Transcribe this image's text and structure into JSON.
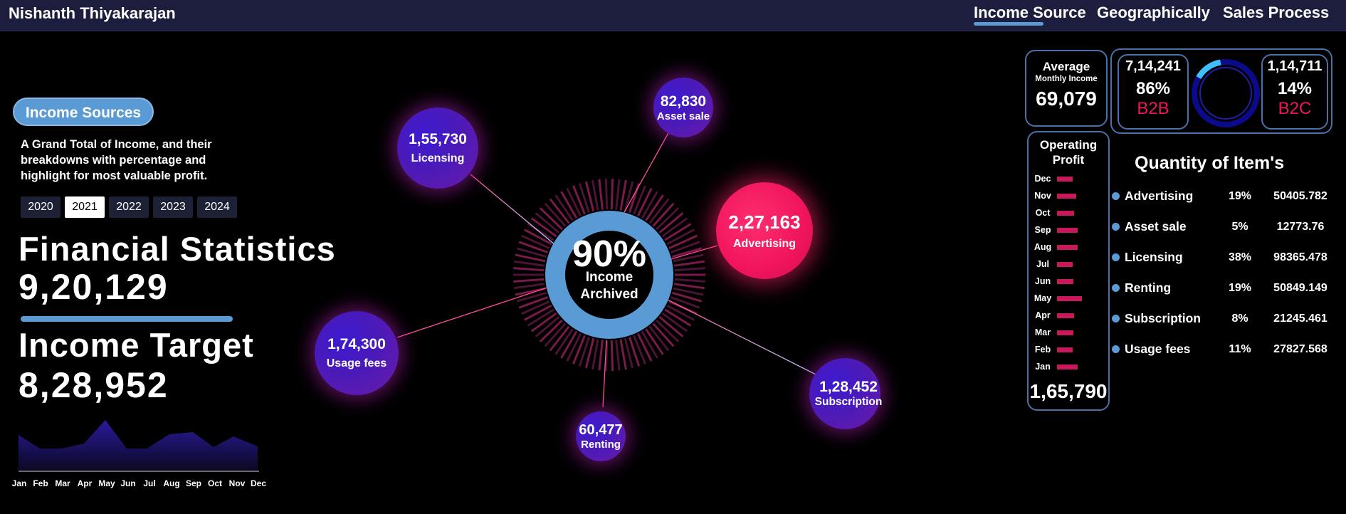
{
  "header": {
    "user_name": "Nishanth Thiyakarajan",
    "nav": [
      "Income Source",
      "Geographically",
      "Sales Process"
    ],
    "active_nav": "Income Source"
  },
  "left": {
    "badge": "Income Sources",
    "description": "A Grand Total of Income, and their breakdowns with percentage and highlight for most valuable profit.",
    "years": [
      "2020",
      "2021",
      "2022",
      "2023",
      "2024"
    ],
    "selected_year": "2021",
    "financial_title": "Financial Statistics",
    "financial_value": "9,20,129",
    "target_title": "Income Target",
    "target_value": "8,28,952",
    "months": [
      "Jan",
      "Feb",
      "Mar",
      "Apr",
      "May",
      "Jun",
      "Jul",
      "Aug",
      "Sep",
      "Oct",
      "Nov",
      "Dec"
    ]
  },
  "center": {
    "percent": "90%",
    "label_line1": "Income",
    "label_line2": "Archived",
    "bubbles": [
      {
        "value": "1,55,730",
        "label": "Licensing"
      },
      {
        "value": "82,830",
        "label": "Asset sale"
      },
      {
        "value": "2,27,163",
        "label": "Advertising"
      },
      {
        "value": "1,74,300",
        "label": "Usage fees"
      },
      {
        "value": "1,28,452",
        "label": "Subscription"
      },
      {
        "value": "60,477",
        "label": "Renting"
      }
    ]
  },
  "right": {
    "avg_title": "Average",
    "avg_sub": "Monthly Income",
    "avg_value": "69,079",
    "b2b": {
      "value": "7,14,241",
      "pct": "86%",
      "label": "B2B",
      "fraction": 0.86
    },
    "b2c": {
      "value": "1,14,711",
      "pct": "14%",
      "label": "B2C",
      "fraction": 0.14
    },
    "op_title_1": "Operating",
    "op_title_2": "Profit",
    "op_value": "1,65,790",
    "op_months": [
      "Dec",
      "Nov",
      "Oct",
      "Sep",
      "Aug",
      "Jul",
      "Jun",
      "May",
      "Apr",
      "Mar",
      "Feb",
      "Jan"
    ],
    "qty_title": "Quantity of Item's",
    "quantities": [
      {
        "name": "Advertising",
        "pct": "19%",
        "value": "50405.782"
      },
      {
        "name": "Asset sale",
        "pct": "5%",
        "value": "12773.76"
      },
      {
        "name": "Licensing",
        "pct": "38%",
        "value": "98365.478"
      },
      {
        "name": "Renting",
        "pct": "19%",
        "value": "50849.149"
      },
      {
        "name": "Subscription",
        "pct": "8%",
        "value": "21245.461"
      },
      {
        "name": "Usage fees",
        "pct": "11%",
        "value": "27827.568"
      }
    ]
  },
  "colors": {
    "accent": "#5b9bd5",
    "hot": "#f0145c",
    "bar": "#c8175a",
    "header": "#1d1d3e"
  }
}
